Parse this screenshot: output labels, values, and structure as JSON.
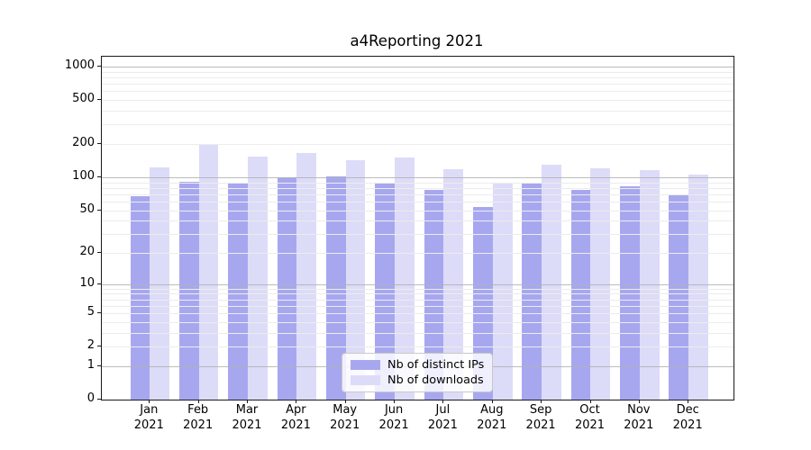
{
  "chart_data": {
    "type": "bar",
    "title": "a4Reporting 2021",
    "categories": [
      "Jan",
      "Feb",
      "Mar",
      "Apr",
      "May",
      "Jun",
      "Jul",
      "Aug",
      "Sep",
      "Oct",
      "Nov",
      "Dec"
    ],
    "category_year": "2021",
    "series": [
      {
        "name": "Nb of distinct IPs",
        "color": "#a7a7f0",
        "values": [
          67,
          91,
          89,
          100,
          102,
          90,
          76,
          53,
          87,
          77,
          82,
          70
        ]
      },
      {
        "name": "Nb of downloads",
        "color": "#dcdcf8",
        "values": [
          124,
          200,
          153,
          165,
          144,
          152,
          119,
          90,
          129,
          120,
          116,
          106
        ]
      }
    ],
    "y_axis": {
      "scale": "log1p",
      "ticks": [
        0,
        1,
        2,
        5,
        10,
        20,
        50,
        100,
        200,
        500,
        1000
      ],
      "major_gridlines": [
        1,
        10,
        100,
        1000
      ],
      "minor_gridlines": [
        2,
        3,
        4,
        5,
        6,
        7,
        8,
        9,
        20,
        30,
        40,
        50,
        60,
        70,
        80,
        90,
        200,
        300,
        400,
        500,
        600,
        700,
        800,
        900
      ],
      "max": 1230
    },
    "legend_position": "lower center",
    "grid": "on",
    "xlabel": "",
    "ylabel": ""
  }
}
